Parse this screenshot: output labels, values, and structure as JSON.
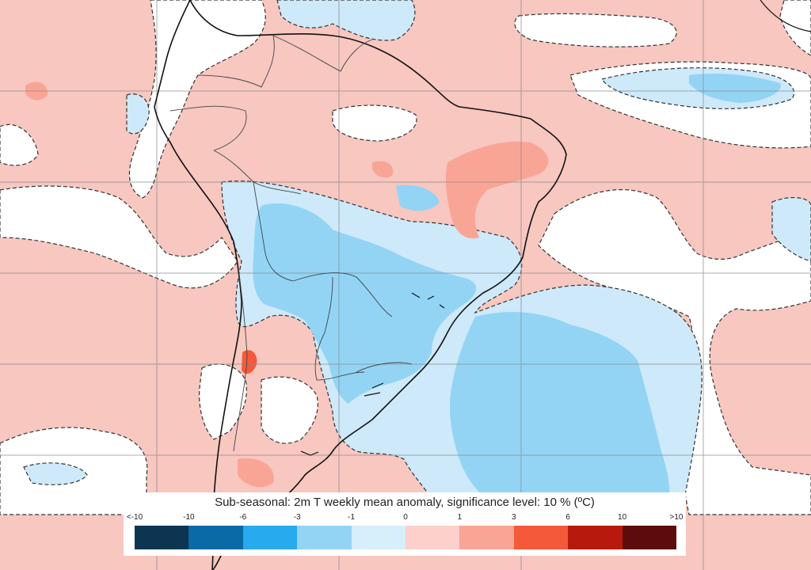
{
  "legend": {
    "title": "Sub-seasonal: 2m T weekly mean anomaly, significance level: 10 % (ºC)",
    "ticks": [
      "<-10",
      "-10",
      "-6",
      "-3",
      "-1",
      "0",
      "1",
      "3",
      "6",
      "10",
      ">10"
    ],
    "colors": [
      "#0c3552",
      "#0a6aa6",
      "#27aaee",
      "#93d4f5",
      "#d7eefb",
      "#fdd0cb",
      "#f9a596",
      "#f45a3a",
      "#b71a0d",
      "#5e0b0b"
    ]
  },
  "map": {
    "region": "South America",
    "background_color": "#f7c7c0",
    "colors": {
      "positive_weak": "#f7c7c0",
      "positive_moderate": "#f9a596",
      "positive_strong": "#f45a3a",
      "neutral": "#ffffff",
      "negative_weak": "#cde9fa",
      "negative_moderate": "#93d4f5"
    }
  }
}
